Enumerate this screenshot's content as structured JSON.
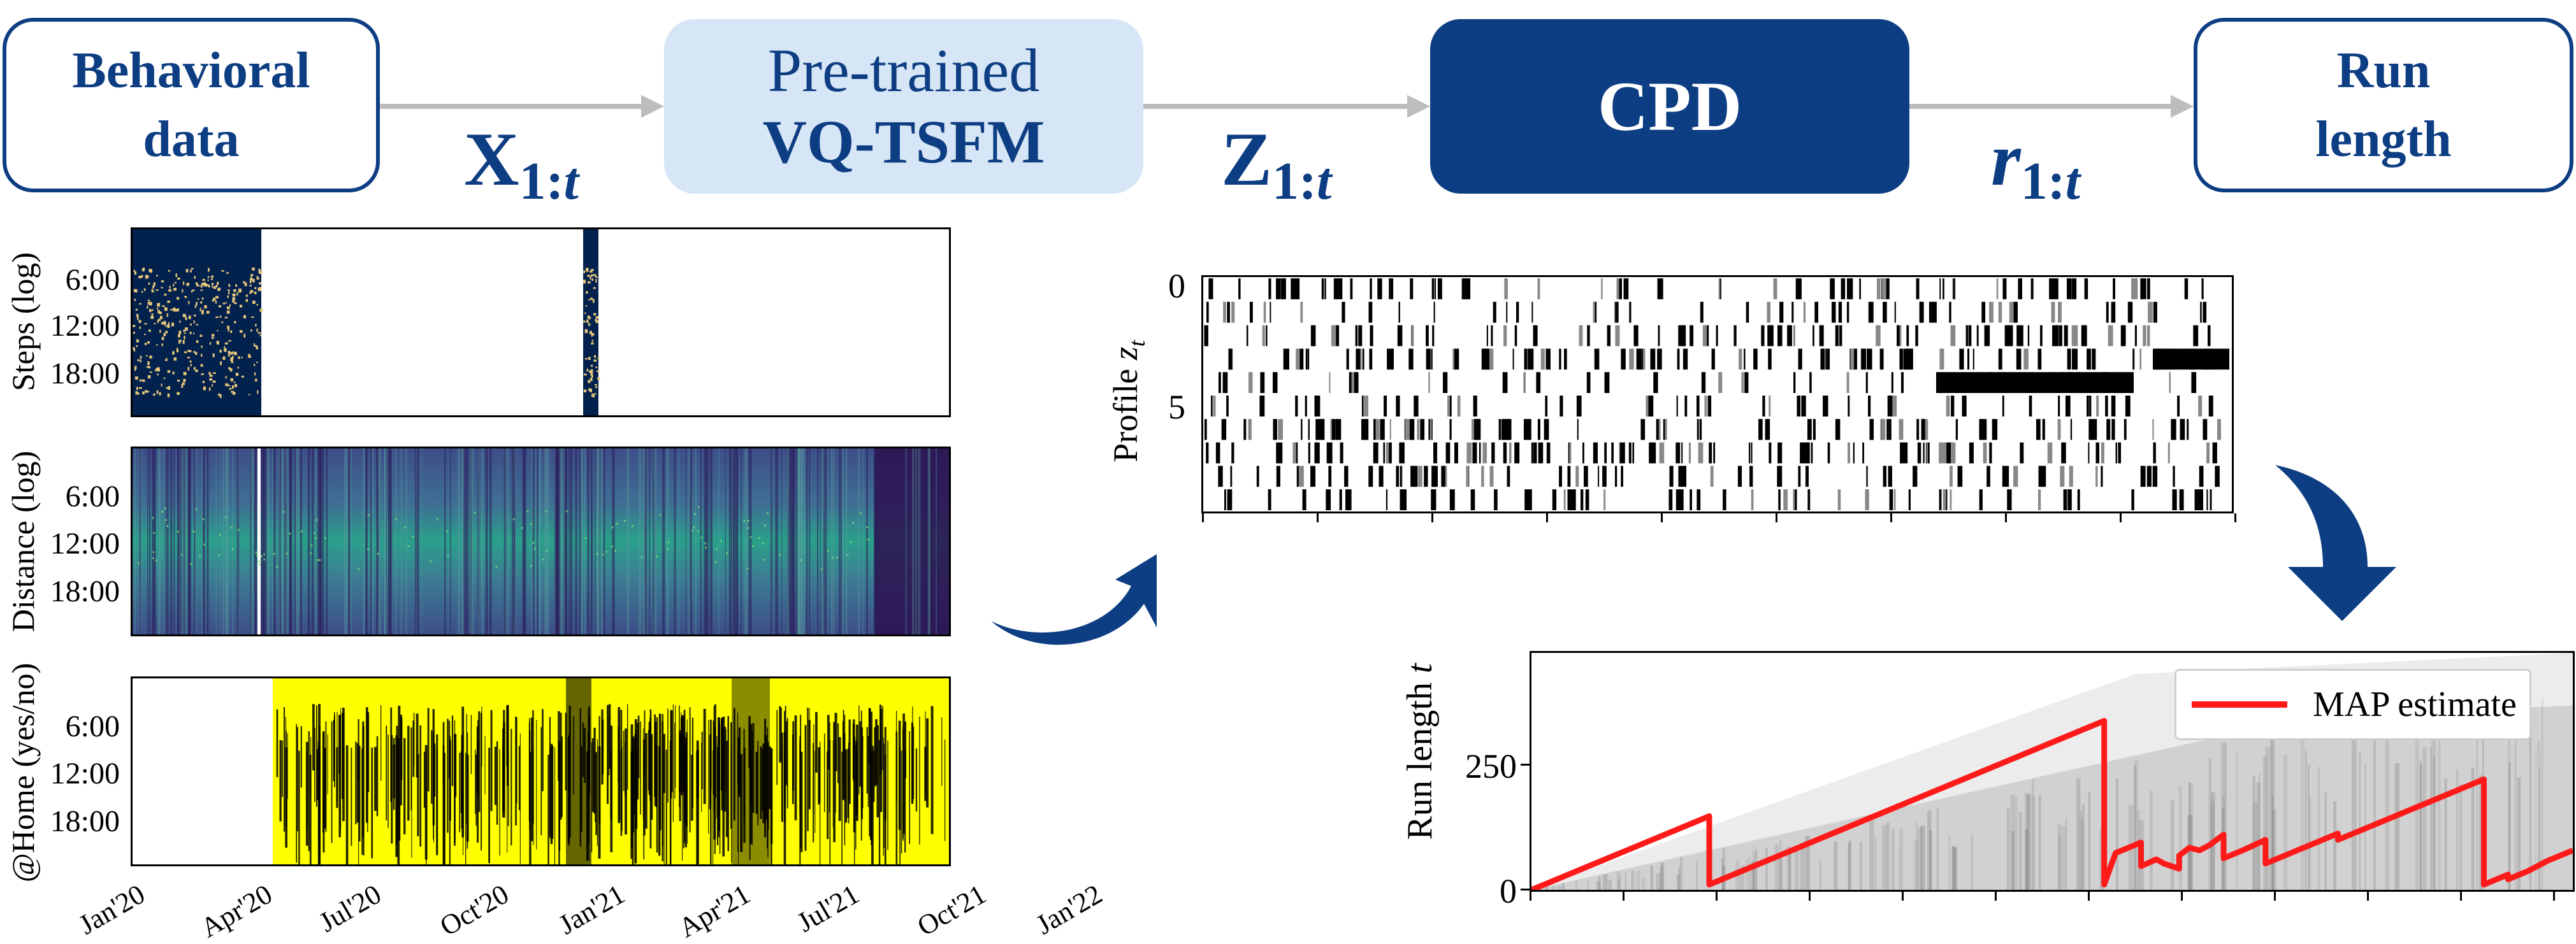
{
  "pipeline": {
    "box_behavioral": [
      "Behavioral",
      "data"
    ],
    "box_vqtsfm": [
      "Pre-trained",
      "VQ-TSFM"
    ],
    "box_cpd": "CPD",
    "box_runlength": [
      "Run",
      "length"
    ],
    "sym_x": {
      "base": "X",
      "sub": "1:",
      "sub_it": "t"
    },
    "sym_z": {
      "base": "Z",
      "sub": "1:",
      "sub_it": "t"
    },
    "sym_r": {
      "base": "r",
      "sub": "1:",
      "sub_it": "t"
    }
  },
  "heatmaps": {
    "steps": {
      "ylabel": "Steps (log)",
      "yticks": [
        "6:00",
        "12:00",
        "18:00"
      ]
    },
    "distance": {
      "ylabel": "Distance (log)",
      "yticks": [
        "6:00",
        "12:00",
        "18:00"
      ]
    },
    "home": {
      "ylabel": "@Home (yes/no)",
      "yticks": [
        "6:00",
        "12:00",
        "18:00"
      ]
    },
    "xticks": [
      "Jan'20",
      "Apr'20",
      "Jul'20",
      "Oct'20",
      "Jan'21",
      "Apr'21",
      "Jul'21",
      "Oct'21",
      "Jan'22"
    ]
  },
  "profile_plot": {
    "ylabel": "Profile",
    "ylabel_sub": "z",
    "ylabel_sub2": "t",
    "yticks": [
      "0",
      "5"
    ]
  },
  "colors": {
    "navy": "#0d3d82",
    "light_blue": "#d6e6f6",
    "connector": "#bdbdbd",
    "map_red": "#ff1a1a",
    "steps_bg": "#03214d",
    "distance_bg": "#3b5a8c",
    "home_yellow": "#ffff00"
  },
  "chart_data": {
    "type": "line",
    "title": "",
    "xlabel": "",
    "ylabel": "Run length",
    "ylabel_sub": "t",
    "yticks": [
      0,
      250
    ],
    "ylim": [
      0,
      450
    ],
    "legend": {
      "placement": "top-right",
      "entries": [
        "MAP estimate"
      ]
    },
    "series": [
      {
        "name": "MAP estimate",
        "x": [
          0,
          140,
          140,
          451,
          451,
          460,
          480,
          480,
          492,
          498,
          510,
          510,
          518,
          526,
          534,
          545,
          545,
          560,
          578,
          578,
          635,
          635,
          750,
          750,
          769,
          769,
          785,
          800,
          820
        ],
        "y": [
          0,
          140,
          10,
          321,
          10,
          70,
          90,
          45,
          58,
          50,
          40,
          65,
          80,
          75,
          85,
          105,
          60,
          75,
          95,
          50,
          107,
          95,
          210,
          10,
          29,
          20,
          36,
          55,
          75
        ]
      }
    ],
    "x_range": [
      0,
      820
    ]
  }
}
